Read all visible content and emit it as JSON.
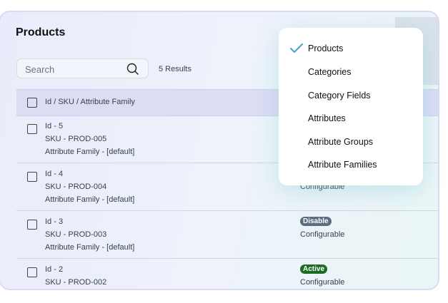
{
  "header": {
    "title": "Products"
  },
  "search": {
    "placeholder": "Search",
    "results": "5 Results"
  },
  "table": {
    "header": "Id / SKU / Attribute Family",
    "rows": [
      {
        "id": "Id - 5",
        "sku": "SKU - PROD-005",
        "family": "Attribute Family - [default]"
      },
      {
        "id": "Id - 4",
        "sku": "SKU - PROD-004",
        "family": "Attribute Family - [default]",
        "type": "Configurable"
      },
      {
        "id": "Id - 3",
        "sku": "SKU - PROD-003",
        "family": "Attribute Family - [default]",
        "status": "Disable",
        "type": "Configurable"
      },
      {
        "id": "Id - 2",
        "sku": "SKU - PROD-002",
        "status": "Active",
        "type": "Configurable"
      }
    ]
  },
  "colors": {
    "disable": "#5b6b80",
    "active": "#1c6b23",
    "check": "#4aa3c9"
  },
  "menu": {
    "items": [
      {
        "label": "Products",
        "selected": true
      },
      {
        "label": "Categories"
      },
      {
        "label": "Category Fields"
      },
      {
        "label": "Attributes"
      },
      {
        "label": "Attribute Groups"
      },
      {
        "label": "Attribute Families"
      }
    ],
    "check_icon": "checkmark-icon"
  }
}
